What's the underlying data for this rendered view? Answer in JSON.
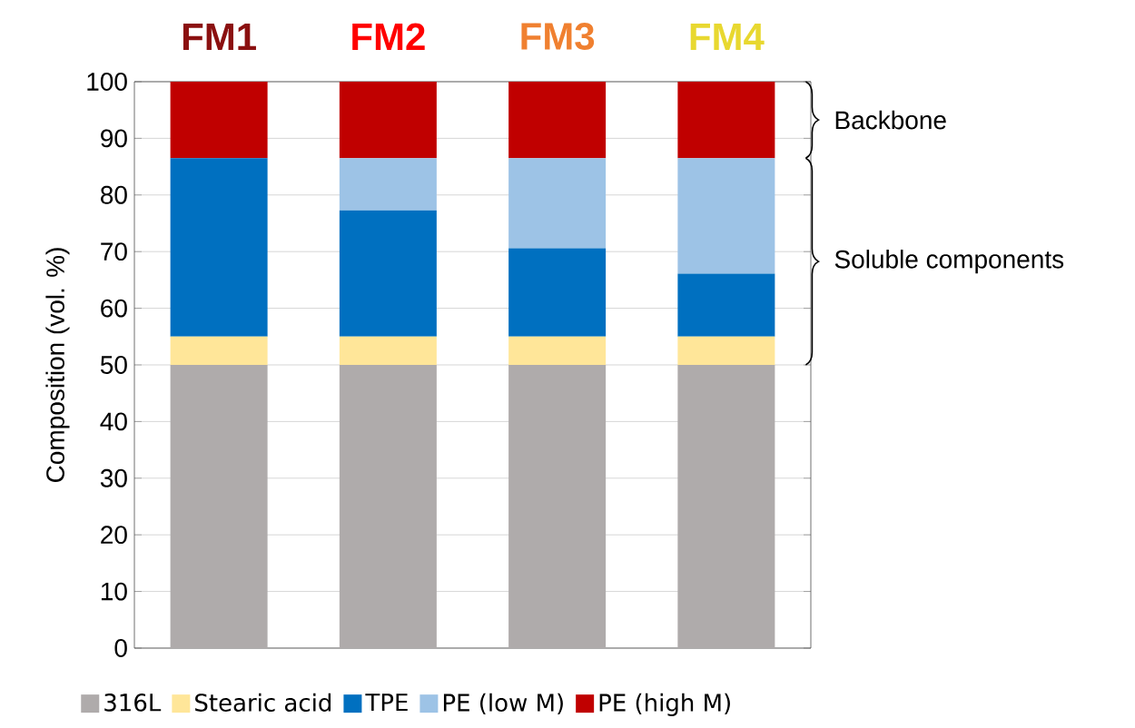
{
  "chart_data": {
    "type": "bar",
    "stacked": true,
    "ylabel": "Composition (vol. %)",
    "categories": [
      "FM1",
      "FM2",
      "FM3",
      "FM4"
    ],
    "series": [
      {
        "name": "316L",
        "color": "#afabab",
        "values": [
          50,
          50,
          50,
          50
        ]
      },
      {
        "name": "Stearic acid",
        "color": "#ffe699",
        "values": [
          5,
          5,
          5,
          5
        ]
      },
      {
        "name": "TPE",
        "color": "#0070c0",
        "values": [
          31.5,
          22.3,
          15.6,
          11.1
        ]
      },
      {
        "name": "PE (low M)",
        "color": "#9dc3e6",
        "values": [
          0,
          9.2,
          15.9,
          20.4
        ]
      },
      {
        "name": "PE (high M)",
        "color": "#c00000",
        "values": [
          13.5,
          13.5,
          13.5,
          13.5
        ]
      }
    ],
    "ylim": [
      0,
      100
    ],
    "yticks": [
      0,
      10,
      20,
      30,
      40,
      50,
      60,
      70,
      80,
      90,
      100
    ],
    "grid": "y",
    "legend": "bottom",
    "annotations": [
      "Backbone",
      "Soluble components"
    ]
  }
}
